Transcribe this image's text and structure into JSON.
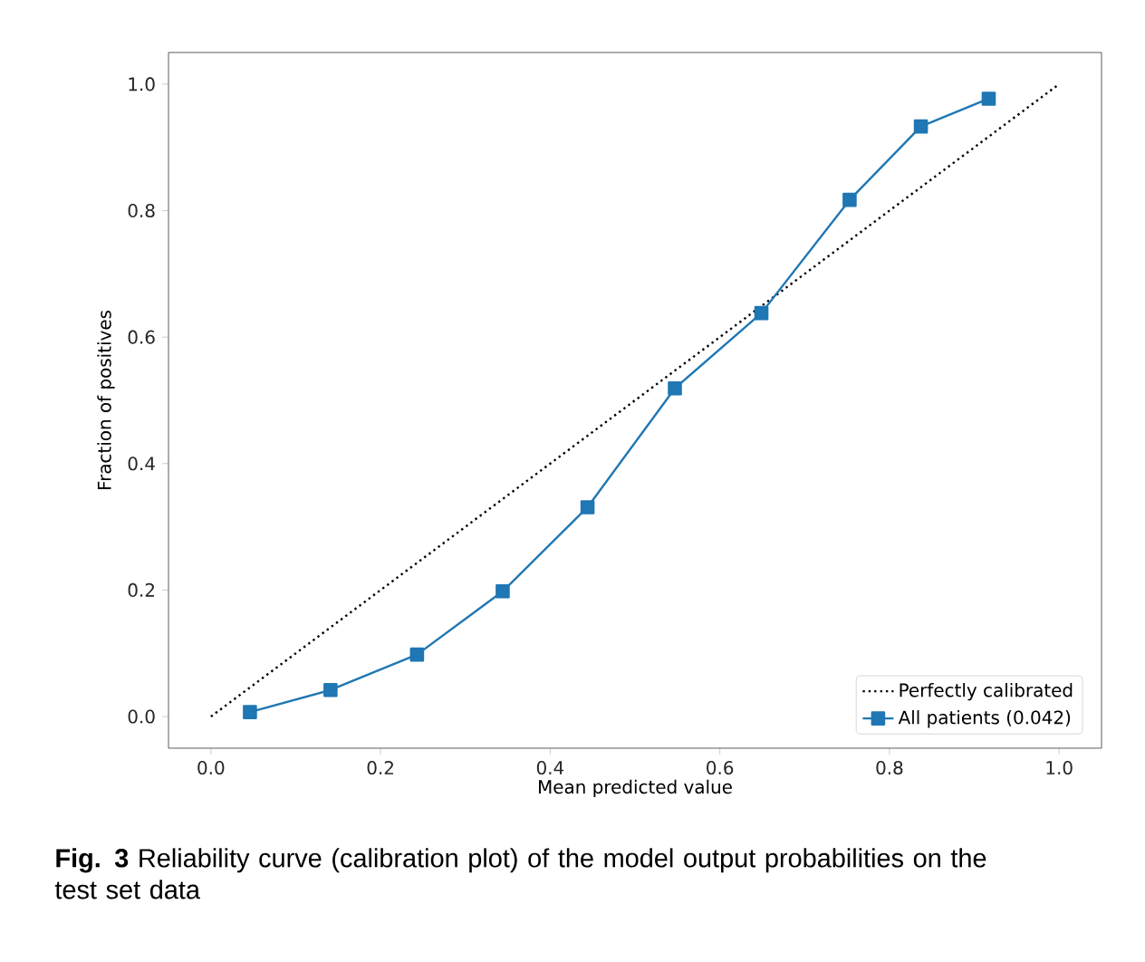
{
  "chart_data": {
    "type": "line",
    "xlabel": "Mean predicted value",
    "ylabel": "Fraction of positives",
    "xlim": [
      -0.05,
      1.05
    ],
    "ylim": [
      -0.05,
      1.05
    ],
    "xticks": [
      {
        "value": 0,
        "label": "0.0"
      },
      0.2,
      0.4,
      0.6,
      0.8,
      {
        "value": 1,
        "label": "1.0"
      }
    ],
    "yticks": [
      {
        "value": 0,
        "label": "0.0"
      },
      0.2,
      0.4,
      0.6,
      0.8,
      {
        "value": 1,
        "label": "1.0"
      }
    ],
    "legend": "bottom right",
    "series": [
      {
        "name": "Perfectly calibrated",
        "color": "#000000",
        "x": [
          0,
          1
        ],
        "values": [
          0,
          1
        ],
        "line_style": "dotted",
        "marker": "none"
      },
      {
        "name": "All patients (0.042)",
        "color": "#1f77b4",
        "x": [
          0.046,
          0.141,
          0.243,
          0.344,
          0.444,
          0.547,
          0.649,
          0.753,
          0.837,
          0.917
        ],
        "values": [
          0.007,
          0.042,
          0.098,
          0.198,
          0.331,
          0.519,
          0.638,
          0.817,
          0.933,
          0.977
        ],
        "line_style": "solid",
        "marker": "square"
      }
    ],
    "annotations": [
      "**Fig. 3** Reliability curve (calibration plot) of the model output probabilities on the test set data"
    ]
  }
}
